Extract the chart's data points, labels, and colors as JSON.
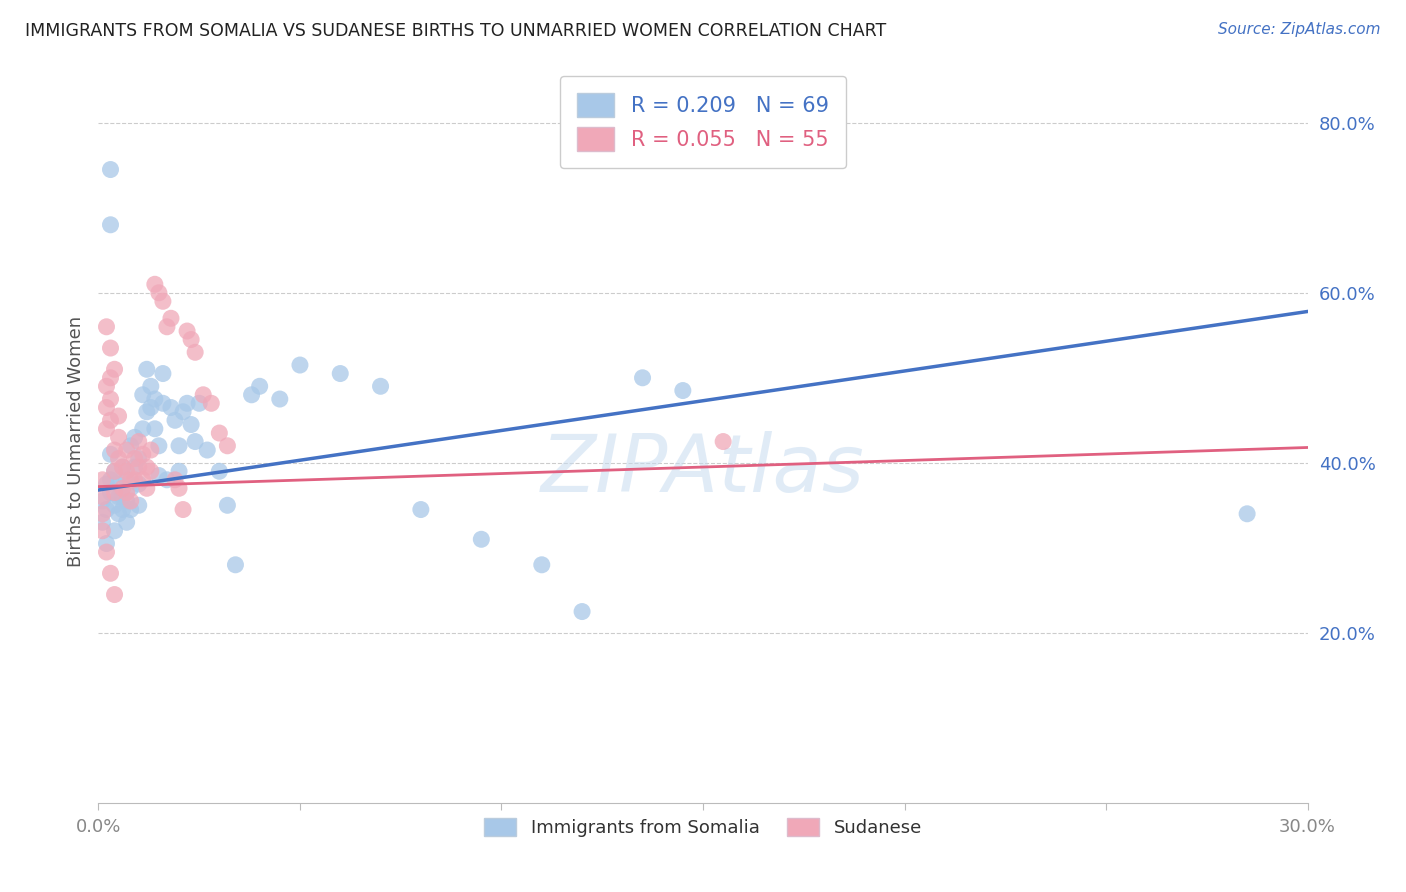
{
  "title": "IMMIGRANTS FROM SOMALIA VS SUDANESE BIRTHS TO UNMARRIED WOMEN CORRELATION CHART",
  "source": "Source: ZipAtlas.com",
  "ylabel": "Births to Unmarried Women",
  "xlim": [
    0.0,
    0.3
  ],
  "ylim": [
    0.0,
    0.85
  ],
  "xticks": [
    0.0,
    0.05,
    0.1,
    0.15,
    0.2,
    0.25,
    0.3
  ],
  "xtick_labels": [
    "0.0%",
    "",
    "",
    "",
    "",
    "",
    "30.0%"
  ],
  "ytick_labels_right": [
    "20.0%",
    "40.0%",
    "60.0%",
    "80.0%"
  ],
  "yticks_right": [
    0.2,
    0.4,
    0.6,
    0.8
  ],
  "watermark": "ZIPAtlas",
  "legend_label1": "Immigrants from Somalia",
  "legend_label2": "Sudanese",
  "color_blue": "#A8C8E8",
  "color_pink": "#F0A8B8",
  "color_blue_line": "#4472C4",
  "color_pink_line": "#E06080",
  "color_title": "#222222",
  "color_source": "#4472C4",
  "color_axis_right": "#4472C4",
  "background_color": "#FFFFFF",
  "somalia_x": [
    0.001,
    0.001,
    0.002,
    0.002,
    0.003,
    0.003,
    0.003,
    0.004,
    0.004,
    0.004,
    0.005,
    0.005,
    0.005,
    0.006,
    0.006,
    0.006,
    0.007,
    0.007,
    0.007,
    0.008,
    0.008,
    0.008,
    0.009,
    0.009,
    0.01,
    0.01,
    0.01,
    0.011,
    0.011,
    0.012,
    0.012,
    0.013,
    0.013,
    0.014,
    0.014,
    0.015,
    0.015,
    0.016,
    0.016,
    0.017,
    0.018,
    0.019,
    0.02,
    0.02,
    0.021,
    0.022,
    0.023,
    0.024,
    0.025,
    0.027,
    0.03,
    0.032,
    0.034,
    0.038,
    0.04,
    0.045,
    0.05,
    0.06,
    0.07,
    0.08,
    0.095,
    0.11,
    0.12,
    0.003,
    0.135,
    0.145,
    0.003,
    0.285,
    0.002
  ],
  "somalia_y": [
    0.355,
    0.33,
    0.345,
    0.375,
    0.38,
    0.41,
    0.365,
    0.35,
    0.32,
    0.39,
    0.36,
    0.34,
    0.375,
    0.395,
    0.36,
    0.345,
    0.38,
    0.355,
    0.33,
    0.37,
    0.345,
    0.42,
    0.395,
    0.43,
    0.405,
    0.375,
    0.35,
    0.44,
    0.48,
    0.46,
    0.51,
    0.49,
    0.465,
    0.475,
    0.44,
    0.42,
    0.385,
    0.505,
    0.47,
    0.38,
    0.465,
    0.45,
    0.42,
    0.39,
    0.46,
    0.47,
    0.445,
    0.425,
    0.47,
    0.415,
    0.39,
    0.35,
    0.28,
    0.48,
    0.49,
    0.475,
    0.515,
    0.505,
    0.49,
    0.345,
    0.31,
    0.28,
    0.225,
    0.745,
    0.5,
    0.485,
    0.68,
    0.34,
    0.305
  ],
  "sudanese_x": [
    0.001,
    0.001,
    0.001,
    0.002,
    0.002,
    0.002,
    0.003,
    0.003,
    0.003,
    0.004,
    0.004,
    0.004,
    0.005,
    0.005,
    0.005,
    0.006,
    0.006,
    0.007,
    0.007,
    0.007,
    0.008,
    0.008,
    0.009,
    0.009,
    0.01,
    0.01,
    0.011,
    0.011,
    0.012,
    0.012,
    0.013,
    0.013,
    0.014,
    0.015,
    0.016,
    0.017,
    0.018,
    0.019,
    0.02,
    0.021,
    0.022,
    0.023,
    0.024,
    0.026,
    0.028,
    0.03,
    0.032,
    0.001,
    0.002,
    0.003,
    0.004,
    0.155,
    0.002,
    0.003,
    0.004
  ],
  "sudanese_y": [
    0.38,
    0.36,
    0.34,
    0.49,
    0.465,
    0.44,
    0.5,
    0.475,
    0.45,
    0.415,
    0.39,
    0.365,
    0.455,
    0.43,
    0.405,
    0.395,
    0.37,
    0.415,
    0.39,
    0.365,
    0.38,
    0.355,
    0.405,
    0.38,
    0.425,
    0.395,
    0.41,
    0.38,
    0.395,
    0.37,
    0.415,
    0.39,
    0.61,
    0.6,
    0.59,
    0.56,
    0.57,
    0.38,
    0.37,
    0.345,
    0.555,
    0.545,
    0.53,
    0.48,
    0.47,
    0.435,
    0.42,
    0.32,
    0.295,
    0.27,
    0.245,
    0.425,
    0.56,
    0.535,
    0.51
  ],
  "som_trend_x": [
    0.0,
    0.3
  ],
  "som_trend_y": [
    0.368,
    0.578
  ],
  "sud_trend_x": [
    0.0,
    0.3
  ],
  "sud_trend_y": [
    0.372,
    0.418
  ]
}
